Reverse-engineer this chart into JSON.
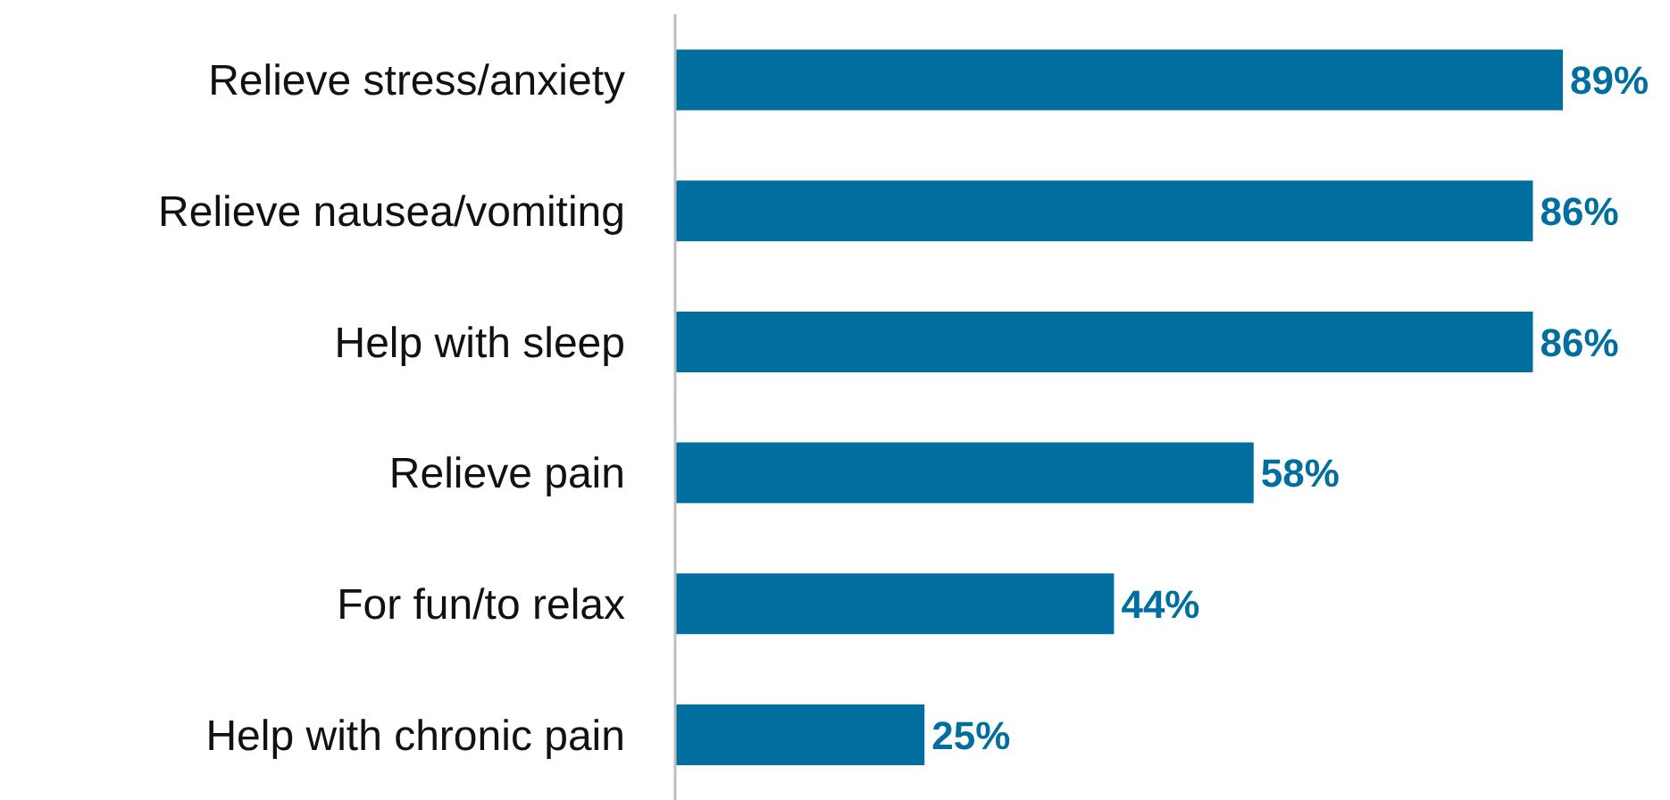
{
  "chart_data": {
    "type": "bar",
    "orientation": "horizontal",
    "categories": [
      "Relieve stress/anxiety",
      "Relieve nausea/vomiting",
      "Help with sleep",
      "Relieve pain",
      "For fun/to relax",
      "Help with chronic pain"
    ],
    "values": [
      89,
      86,
      86,
      58,
      44,
      25
    ],
    "value_labels": [
      "89%",
      "86%",
      "86%",
      "58%",
      "44%",
      "25%"
    ],
    "color": "#006fa0"
  }
}
